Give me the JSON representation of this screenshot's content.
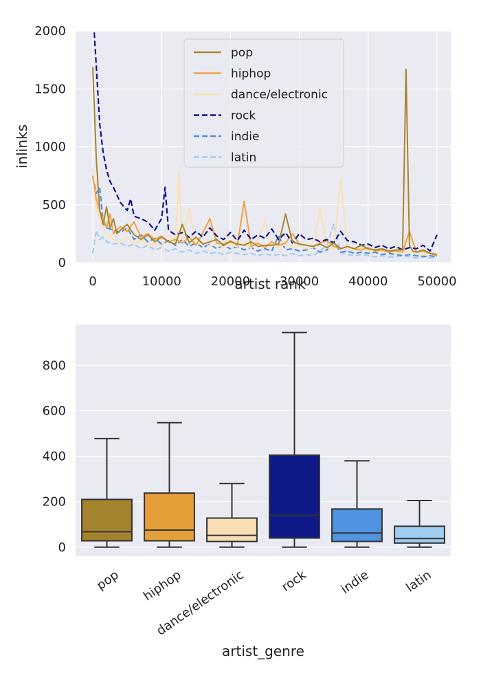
{
  "chart_data": [
    {
      "type": "line",
      "title": "",
      "xlabel": "artist rank",
      "ylabel": "inlinks",
      "xlim": [
        -2500,
        52000
      ],
      "ylim": [
        0,
        2000
      ],
      "xticks": [
        0,
        10000,
        20000,
        30000,
        40000,
        50000
      ],
      "yticks": [
        0,
        500,
        1000,
        1500,
        2000
      ],
      "grid": true,
      "legend": "top-center",
      "series": [
        {
          "name": "pop",
          "color": "#a8862f",
          "dash": "solid",
          "x": [
            0,
            500,
            1000,
            1500,
            2000,
            2500,
            3000,
            3500,
            4000,
            5000,
            6000,
            7000,
            8000,
            9000,
            10000,
            11000,
            12000,
            13000,
            14000,
            15000,
            16000,
            17000,
            18000,
            19000,
            20000,
            21000,
            22000,
            23000,
            24000,
            25000,
            26000,
            27000,
            28000,
            29000,
            30000,
            31000,
            32000,
            33000,
            34000,
            35000,
            36000,
            37000,
            38000,
            39000,
            40000,
            41000,
            42000,
            43000,
            44000,
            45000,
            45500,
            46000,
            46500,
            47000,
            48000,
            49000,
            50000
          ],
          "y": [
            1690,
            900,
            450,
            330,
            480,
            300,
            380,
            250,
            280,
            330,
            240,
            200,
            240,
            180,
            220,
            180,
            160,
            330,
            170,
            220,
            160,
            180,
            200,
            150,
            180,
            160,
            150,
            180,
            140,
            150,
            150,
            160,
            420,
            180,
            160,
            150,
            140,
            160,
            130,
            170,
            120,
            140,
            120,
            150,
            120,
            110,
            120,
            100,
            110,
            110,
            1670,
            150,
            100,
            90,
            110,
            80,
            70
          ]
        },
        {
          "name": "hiphop",
          "color": "#f0a23a",
          "dash": "solid",
          "x": [
            0,
            500,
            1000,
            1500,
            2000,
            2500,
            3000,
            4000,
            5000,
            6000,
            7000,
            8000,
            9000,
            10000,
            11000,
            12000,
            13000,
            14000,
            15000,
            16000,
            17000,
            18000,
            19000,
            20000,
            21000,
            22000,
            23000,
            24000,
            25000,
            26000,
            27000,
            28000,
            29000,
            30000,
            31000,
            32000,
            33000,
            34000,
            35000,
            36000,
            37000,
            38000,
            39000,
            40000,
            41000,
            42000,
            43000,
            44000,
            45000,
            46000,
            47000,
            48000,
            49000,
            50000
          ],
          "y": [
            750,
            550,
            450,
            380,
            300,
            420,
            250,
            310,
            270,
            350,
            220,
            250,
            200,
            230,
            180,
            200,
            170,
            220,
            150,
            260,
            380,
            170,
            160,
            190,
            150,
            530,
            140,
            170,
            130,
            180,
            150,
            170,
            250,
            160,
            150,
            140,
            170,
            190,
            140,
            120,
            140,
            120,
            110,
            130,
            100,
            110,
            90,
            100,
            90,
            270,
            90,
            100,
            80,
            60
          ]
        },
        {
          "name": "dance/electronic",
          "color": "#fde0b0",
          "dash": "solid",
          "x": [
            0,
            500,
            1000,
            2000,
            3000,
            4000,
            5000,
            6000,
            7000,
            8000,
            9000,
            10000,
            11000,
            12000,
            12500,
            13000,
            14000,
            15000,
            16000,
            17000,
            18000,
            19000,
            20000,
            21000,
            22000,
            23000,
            24000,
            25000,
            26000,
            27000,
            28000,
            29000,
            30000,
            31000,
            32000,
            33000,
            34000,
            35000,
            36000,
            37000,
            38000,
            39000,
            40000,
            41000,
            42000,
            43000,
            44000,
            45000,
            46000,
            47000,
            48000,
            49000,
            50000
          ],
          "y": [
            820,
            480,
            380,
            250,
            200,
            180,
            220,
            160,
            200,
            150,
            170,
            140,
            240,
            180,
            770,
            200,
            470,
            150,
            180,
            140,
            160,
            130,
            150,
            140,
            180,
            120,
            200,
            360,
            150,
            130,
            160,
            130,
            140,
            120,
            130,
            480,
            130,
            110,
            720,
            120,
            100,
            130,
            100,
            120,
            90,
            100,
            90,
            80,
            100,
            80,
            70,
            90,
            60
          ]
        },
        {
          "name": "rock",
          "color": "#12128c",
          "dash": "dashed",
          "x": [
            0,
            200,
            500,
            800,
            1000,
            1500,
            2000,
            2500,
            3000,
            4000,
            5000,
            5500,
            6000,
            7000,
            8000,
            9000,
            10000,
            10500,
            11000,
            12000,
            13000,
            14000,
            15000,
            16000,
            17000,
            18000,
            19000,
            20000,
            21000,
            22000,
            23000,
            24000,
            25000,
            26000,
            27000,
            28000,
            29000,
            30000,
            31000,
            32000,
            33000,
            34000,
            35000,
            36000,
            37000,
            38000,
            39000,
            40000,
            41000,
            42000,
            43000,
            44000,
            45000,
            46000,
            47000,
            48000,
            49000,
            50000
          ],
          "y": [
            2200,
            2000,
            1700,
            1400,
            1200,
            950,
            800,
            700,
            650,
            520,
            450,
            550,
            400,
            380,
            350,
            280,
            380,
            650,
            280,
            240,
            260,
            220,
            270,
            220,
            300,
            230,
            200,
            260,
            190,
            280,
            200,
            240,
            210,
            290,
            200,
            260,
            170,
            250,
            200,
            210,
            180,
            200,
            170,
            270,
            190,
            180,
            150,
            160,
            130,
            150,
            120,
            140,
            110,
            130,
            120,
            150,
            100,
            240
          ]
        },
        {
          "name": "indie",
          "color": "#4c8fe0",
          "dash": "dashed",
          "x": [
            0,
            500,
            1000,
            1500,
            2000,
            3000,
            4000,
            5000,
            6000,
            7000,
            8000,
            9000,
            10000,
            11000,
            12000,
            13000,
            14000,
            15000,
            16000,
            17000,
            18000,
            19000,
            20000,
            21000,
            22000,
            23000,
            24000,
            25000,
            26000,
            27000,
            28000,
            29000,
            30000,
            31000,
            32000,
            33000,
            34000,
            35000,
            36000,
            37000,
            38000,
            39000,
            40000,
            41000,
            42000,
            43000,
            44000,
            45000,
            46000,
            47000,
            48000,
            49000,
            50000
          ],
          "y": [
            750,
            600,
            650,
            350,
            300,
            280,
            260,
            300,
            200,
            240,
            180,
            210,
            160,
            190,
            150,
            200,
            140,
            170,
            130,
            160,
            120,
            150,
            120,
            140,
            110,
            130,
            100,
            120,
            100,
            230,
            110,
            120,
            100,
            110,
            130,
            90,
            110,
            180,
            90,
            100,
            80,
            90,
            80,
            90,
            70,
            80,
            70,
            60,
            70,
            60,
            50,
            60,
            50
          ]
        },
        {
          "name": "latin",
          "color": "#a4cdf2",
          "dash": "dashed",
          "x": [
            0,
            500,
            1000,
            1500,
            2000,
            3000,
            4000,
            5000,
            6000,
            7000,
            8000,
            9000,
            10000,
            11000,
            12000,
            13000,
            14000,
            15000,
            16000,
            17000,
            18000,
            19000,
            20000,
            21000,
            22000,
            23000,
            24000,
            25000,
            26000,
            27000,
            28000,
            29000,
            30000,
            31000,
            32000,
            33000,
            34000,
            35000,
            36000,
            37000,
            38000,
            39000,
            40000,
            41000,
            42000,
            43000,
            44000,
            45000,
            46000,
            47000,
            48000,
            49000,
            50000
          ],
          "y": [
            80,
            280,
            200,
            220,
            180,
            160,
            170,
            140,
            160,
            120,
            150,
            110,
            130,
            100,
            120,
            90,
            110,
            80,
            100,
            80,
            90,
            70,
            90,
            80,
            70,
            80,
            60,
            80,
            60,
            70,
            60,
            80,
            60,
            70,
            60,
            100,
            150,
            330,
            90,
            70,
            60,
            70,
            60,
            50,
            60,
            50,
            50,
            60,
            50,
            40,
            60,
            40,
            50
          ]
        }
      ]
    },
    {
      "type": "box",
      "title": "",
      "xlabel": "artist_genre",
      "ylabel": "",
      "ylim": [
        -40,
        980
      ],
      "yticks": [
        0,
        200,
        400,
        600,
        800
      ],
      "grid": true,
      "categories": [
        "pop",
        "hiphop",
        "dance/electronic",
        "rock",
        "indie",
        "latin"
      ],
      "boxes": [
        {
          "name": "pop",
          "color": "#a4832e",
          "whisker_low": 0,
          "q1": 28,
          "median": 68,
          "q3": 210,
          "whisker_high": 478
        },
        {
          "name": "hiphop",
          "color": "#e59f39",
          "whisker_low": 0,
          "q1": 28,
          "median": 75,
          "q3": 238,
          "whisker_high": 548
        },
        {
          "name": "dance/electronic",
          "color": "#f9deb3",
          "whisker_low": 0,
          "q1": 25,
          "median": 52,
          "q3": 128,
          "whisker_high": 280
        },
        {
          "name": "rock",
          "color": "#0e1a88",
          "whisker_low": 0,
          "q1": 40,
          "median": 140,
          "q3": 405,
          "whisker_high": 945
        },
        {
          "name": "indie",
          "color": "#4f94e2",
          "whisker_low": 0,
          "q1": 25,
          "median": 62,
          "q3": 168,
          "whisker_high": 380
        },
        {
          "name": "latin",
          "color": "#a0cdf2",
          "whisker_low": 0,
          "q1": 18,
          "median": 38,
          "q3": 92,
          "whisker_high": 205
        }
      ]
    }
  ]
}
